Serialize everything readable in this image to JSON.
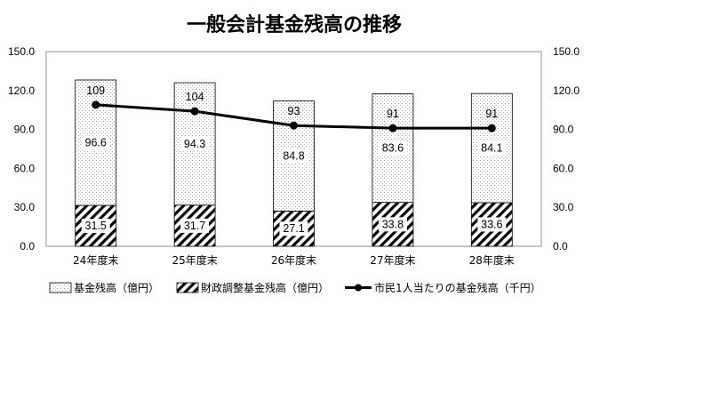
{
  "chart_data": {
    "type": "bar",
    "title": "一般会計基金残高の推移",
    "categories": [
      "24年度末",
      "25年度末",
      "26年度末",
      "27年度末",
      "28年度末"
    ],
    "series": [
      {
        "name": "財政調整基金残高（億円）",
        "kind": "bar",
        "values": [
          31.5,
          31.7,
          27.1,
          33.8,
          33.6
        ],
        "labels": [
          "31.5",
          "31.7",
          "27.1",
          "33.8",
          "33.6"
        ]
      },
      {
        "name": "基金残高（億円）",
        "kind": "bar",
        "values": [
          96.6,
          94.3,
          84.8,
          83.6,
          84.1
        ],
        "labels": [
          "96.6",
          "94.3",
          "84.8",
          "83.6",
          "84.1"
        ]
      },
      {
        "name": "市民1人当たりの基金残高（千円）",
        "kind": "line",
        "values": [
          109,
          104,
          93,
          91,
          91
        ],
        "labels": [
          "109",
          "104",
          "93",
          "91",
          "91"
        ]
      }
    ],
    "y_ticks": [
      "0.0",
      "30.0",
      "60.0",
      "90.0",
      "120.0",
      "150.0"
    ],
    "ylim": [
      0,
      150
    ],
    "y2lim": [
      0,
      150
    ],
    "legend_position": "bottom",
    "grid": false
  }
}
